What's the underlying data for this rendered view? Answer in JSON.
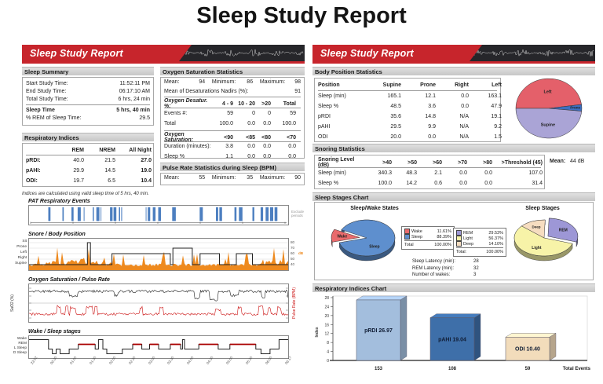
{
  "page_title": "Sleep Study Report",
  "colors": {
    "header_red": "#c7252c",
    "section_header_bg": "#d6d6d6",
    "event_blue": "#4d7fc0",
    "snore_orange": "#ee8a1f",
    "pulse_red": "#cc1414",
    "spo2_black": "#1a1a1a",
    "hypno_rem_red": "#aa0000"
  },
  "left_panel": {
    "header_title": "Sleep Study Report",
    "sleep_summary": {
      "title": "Sleep Summary",
      "rows": [
        {
          "label": "Start Study Time:",
          "value": "11:52:11 PM",
          "bold": false,
          "divider_after": false
        },
        {
          "label": "End Study Time:",
          "value": "06:17:10 AM",
          "bold": false,
          "divider_after": false
        },
        {
          "label": "Total Study Time:",
          "value": "6 hrs, 24 min",
          "bold": false,
          "divider_after": true
        },
        {
          "label": "Sleep Time",
          "value": "5 hrs, 40 min",
          "bold": true,
          "divider_after": false
        },
        {
          "label": "% REM of Sleep Time:",
          "value": "29.5",
          "bold": false,
          "divider_after": false
        }
      ]
    },
    "respiratory_indices": {
      "title": "Respiratory Indices",
      "headers": [
        "",
        "REM",
        "NREM",
        "All Night"
      ],
      "rows": [
        [
          "pRDI:",
          "40.0",
          "21.5",
          "27.0"
        ],
        [
          "pAHI:",
          "29.9",
          "14.5",
          "19.0"
        ],
        [
          "ODI:",
          "19.7",
          "6.5",
          "10.4"
        ]
      ],
      "note": "Indices are calculated using valid sleep time of 5 hrs, 40 min."
    },
    "oxygen_saturation": {
      "title": "Oxygen Saturation Statistics",
      "summary": [
        {
          "label": "Mean:",
          "value": "94"
        },
        {
          "label": "Minimum:",
          "value": "86"
        },
        {
          "label": "Maximum:",
          "value": "98"
        }
      ],
      "nadir": {
        "label": "Mean of Desaturations Nadirs (%):",
        "value": "91"
      },
      "desat_table": {
        "headers": [
          "Oxygen Desatur. %:",
          "4 - 9",
          "10 - 20",
          ">20",
          "Total"
        ],
        "rows": [
          [
            "Events #:",
            "59",
            "0",
            "0",
            "59"
          ],
          [
            "Total",
            "100.0",
            "0.0",
            "0.0",
            "100.0"
          ]
        ]
      },
      "sat_table": {
        "headers": [
          "Oxygen Saturation:",
          "<90",
          "<85",
          "<80",
          "<70"
        ],
        "rows": [
          [
            "Duration (minutes):",
            "3.8",
            "0.0",
            "0.0",
            "0.0"
          ],
          [
            "Sleep %",
            "1.1",
            "0.0",
            "0.0",
            "0.0"
          ]
        ]
      }
    },
    "pulse_rate": {
      "title": "Pulse Rate Statistics during Sleep (BPM)",
      "summary": [
        {
          "label": "Mean:",
          "value": "55"
        },
        {
          "label": "Minimum:",
          "value": "35"
        },
        {
          "label": "Maximum:",
          "value": "90"
        }
      ]
    },
    "charts": {
      "pat": {
        "title": "PAT  Respiratory Events",
        "side_label": "Exclude periods"
      },
      "snore": {
        "title": "Snore / Body Position",
        "position_labels": [
          "Sit",
          "Prone",
          "Left",
          "Right",
          "Supine"
        ],
        "db_ticks": [
          "80",
          "70",
          "60",
          "50",
          "40"
        ],
        "unit": "dB"
      },
      "spo2": {
        "title": "Oxygen Saturation / Pulse Rate",
        "left_axis": "SaO2 (%)",
        "right_axis": "Pulse Rate (BPM)"
      },
      "hypnogram": {
        "title": "Wake / Sleep stages",
        "stage_labels": [
          "Wake",
          "REM",
          "L Sleep",
          "D Sleep"
        ],
        "time_ticks": [
          "23:52",
          "00:30",
          "01:00",
          "01:30",
          "02:00",
          "02:30",
          "03:00",
          "03:30",
          "04:00",
          "04:30",
          "05:00",
          "05:30",
          "06:00",
          "06:17"
        ]
      }
    }
  },
  "right_panel": {
    "header_title": "Sleep Study Report",
    "body_position": {
      "title": "Body Position Statistics",
      "headers": [
        "Position",
        "Supine",
        "Prone",
        "Right",
        "Left"
      ],
      "rows": [
        [
          "Sleep (min)",
          "165.1",
          "12.1",
          "0.0",
          "163.1"
        ],
        [
          "Sleep %",
          "48.5",
          "3.6",
          "0.0",
          "47.9"
        ],
        [
          "pRDI",
          "35.6",
          "14.8",
          "N/A",
          "19.1"
        ],
        [
          "pAHI",
          "29.5",
          "9.9",
          "N/A",
          "9.2"
        ],
        [
          "ODI",
          "20.0",
          "0.0",
          "N/A",
          "1.5"
        ]
      ]
    },
    "snoring": {
      "title": "Snoring Statistics",
      "headers": [
        "Snoring Level (dB)",
        ">40",
        ">50",
        ">60",
        ">70",
        ">80",
        ">Threshold (45)"
      ],
      "rows": [
        [
          "Sleep (min)",
          "340.3",
          "48.3",
          "2.1",
          "0.0",
          "0.0",
          "107.0"
        ],
        [
          "Sleep %",
          "100.0",
          "14.2",
          "0.6",
          "0.0",
          "0.0",
          "31.4"
        ]
      ],
      "mean_label": "Mean:",
      "mean_value": "44 dB"
    },
    "sleep_stages": {
      "title": "Sleep Stages Chart",
      "stats": [
        {
          "label": "Sleep Latency (min):",
          "value": "28"
        },
        {
          "label": "REM Latency (min):",
          "value": "32"
        },
        {
          "label": "Number of wakes:",
          "value": "3"
        }
      ]
    },
    "respiratory_chart": {
      "title": "Respiratory Indices Chart"
    }
  },
  "chart_data": [
    {
      "id": "body_position_pie",
      "type": "pie",
      "title": "Body Position Statistics",
      "unit": "Sleep %",
      "labels": [
        "Left",
        "Prone",
        "Supine"
      ],
      "values": [
        47.9,
        3.6,
        48.5
      ],
      "colors": [
        "#e4606a",
        "#3e6fc0",
        "#aaa4d6"
      ]
    },
    {
      "id": "sleep_wake_pie",
      "type": "pie",
      "title": "Sleep/Wake States",
      "labels": [
        "Wake",
        "Sleep"
      ],
      "values": [
        11.61,
        88.39
      ],
      "display": [
        "11.61%",
        "88.39%"
      ],
      "total_label": "Total",
      "total": "100.00%",
      "colors": [
        "#e96a6c",
        "#5e8fce"
      ],
      "legend_position": "right"
    },
    {
      "id": "sleep_stages_pie",
      "type": "pie",
      "title": "Sleep Stages",
      "labels": [
        "REM",
        "Light",
        "Deep"
      ],
      "values": [
        29.53,
        56.37,
        14.1
      ],
      "display": [
        "29.53%",
        "56.37%",
        "14.10%"
      ],
      "total_label": "Total:",
      "total": "100.00%",
      "colors": [
        "#9d97d6",
        "#f7f3a8",
        "#f6ddc0"
      ],
      "legend_position": "left"
    },
    {
      "id": "respiratory_bars",
      "type": "bar",
      "title": "Respiratory Indices Chart",
      "categories": [
        "pRDI",
        "pAHI",
        "ODI"
      ],
      "values": [
        26.97,
        19.04,
        10.4
      ],
      "bar_labels": [
        "pRDI 26.97",
        "pAHI 19.04",
        "ODI 10.40"
      ],
      "total_events": [
        "153",
        "108",
        "59"
      ],
      "total_events_label": "Total Events",
      "ylabel": "Index",
      "ylim": [
        0,
        28
      ],
      "ytick_step": 4,
      "colors": [
        "#a3bedd",
        "#3e6fa9",
        "#f2dcbb"
      ]
    }
  ]
}
